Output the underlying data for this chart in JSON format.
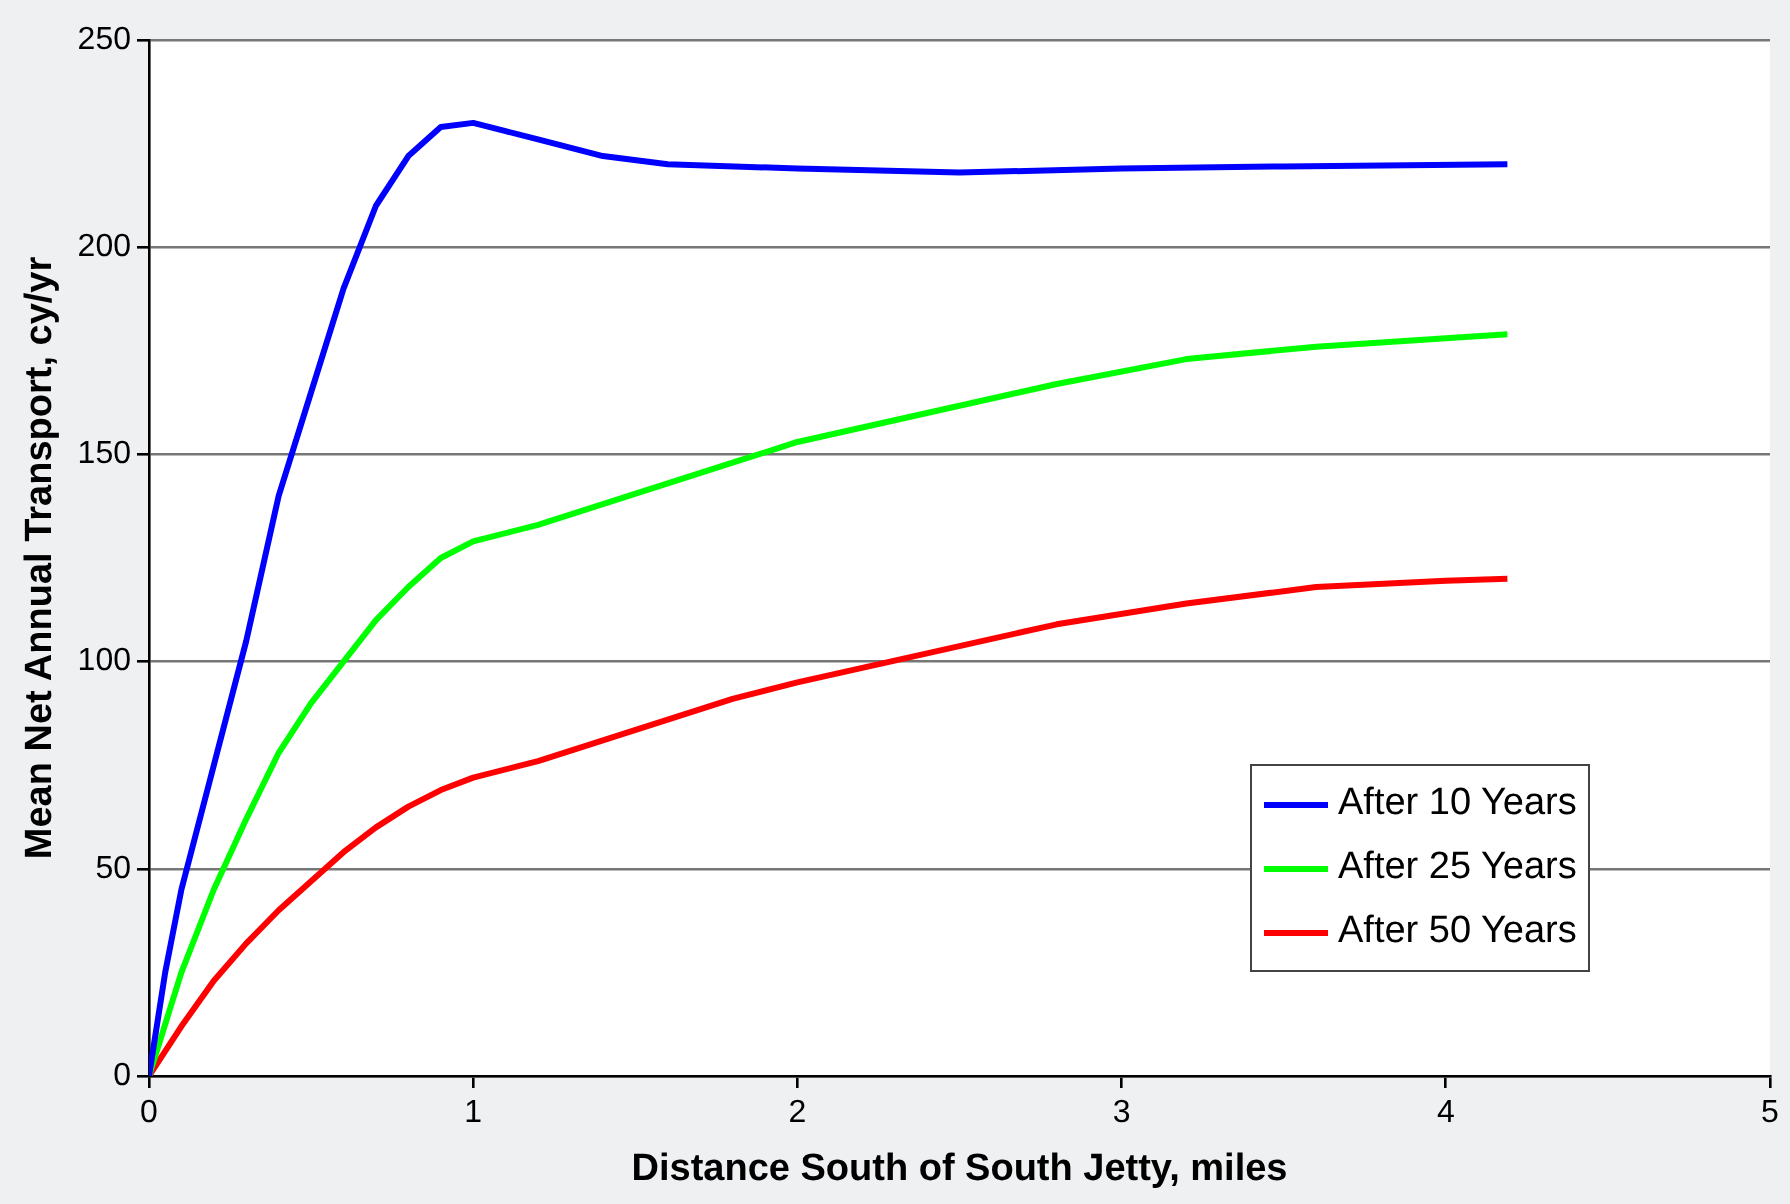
{
  "chart_data": {
    "type": "line",
    "xlabel": "Distance South of South Jetty, miles",
    "ylabel": "Mean Net Annual Transport, cy/yr",
    "xlim": [
      0,
      5
    ],
    "xticks": [
      0,
      1,
      2,
      3,
      4,
      5
    ],
    "ylim": [
      0,
      250
    ],
    "yticks": [
      0,
      50,
      100,
      150,
      200,
      250
    ],
    "grid": "y",
    "legend": "bottom right",
    "marker": "none",
    "line_style": "solid",
    "series": [
      {
        "name": "After 10 Years",
        "color": "#0000ff",
        "x": [
          0,
          0.05,
          0.1,
          0.2,
          0.3,
          0.4,
          0.5,
          0.6,
          0.7,
          0.8,
          0.9,
          1.0,
          1.1,
          1.2,
          1.4,
          1.6,
          2.0,
          2.5,
          3.0,
          3.5,
          4.19
        ],
        "values": [
          0,
          25,
          45,
          75,
          105,
          140,
          165,
          190,
          210,
          222,
          229,
          230,
          228,
          226,
          222,
          220,
          219,
          218,
          219,
          219.5,
          220
        ]
      },
      {
        "name": "After 25 Years",
        "color": "#00ff00",
        "x": [
          0,
          0.1,
          0.2,
          0.3,
          0.4,
          0.5,
          0.6,
          0.7,
          0.8,
          0.9,
          1.0,
          1.2,
          1.4,
          1.6,
          1.8,
          2.0,
          2.4,
          2.8,
          3.2,
          3.6,
          4.0,
          4.19
        ],
        "values": [
          0,
          25,
          45,
          62,
          78,
          90,
          100,
          110,
          118,
          125,
          129,
          133,
          138,
          143,
          148,
          153,
          160,
          167,
          173,
          176,
          178,
          179
        ]
      },
      {
        "name": "After 50 Years",
        "color": "#ff0000",
        "x": [
          0,
          0.1,
          0.2,
          0.3,
          0.4,
          0.5,
          0.6,
          0.7,
          0.8,
          0.9,
          1.0,
          1.2,
          1.4,
          1.6,
          1.8,
          2.0,
          2.4,
          2.8,
          3.2,
          3.6,
          4.0,
          4.19
        ],
        "values": [
          0,
          12,
          23,
          32,
          40,
          47,
          54,
          60,
          65,
          69,
          72,
          76,
          81,
          86,
          91,
          95,
          102,
          109,
          114,
          118,
          119.5,
          120
        ]
      }
    ]
  }
}
